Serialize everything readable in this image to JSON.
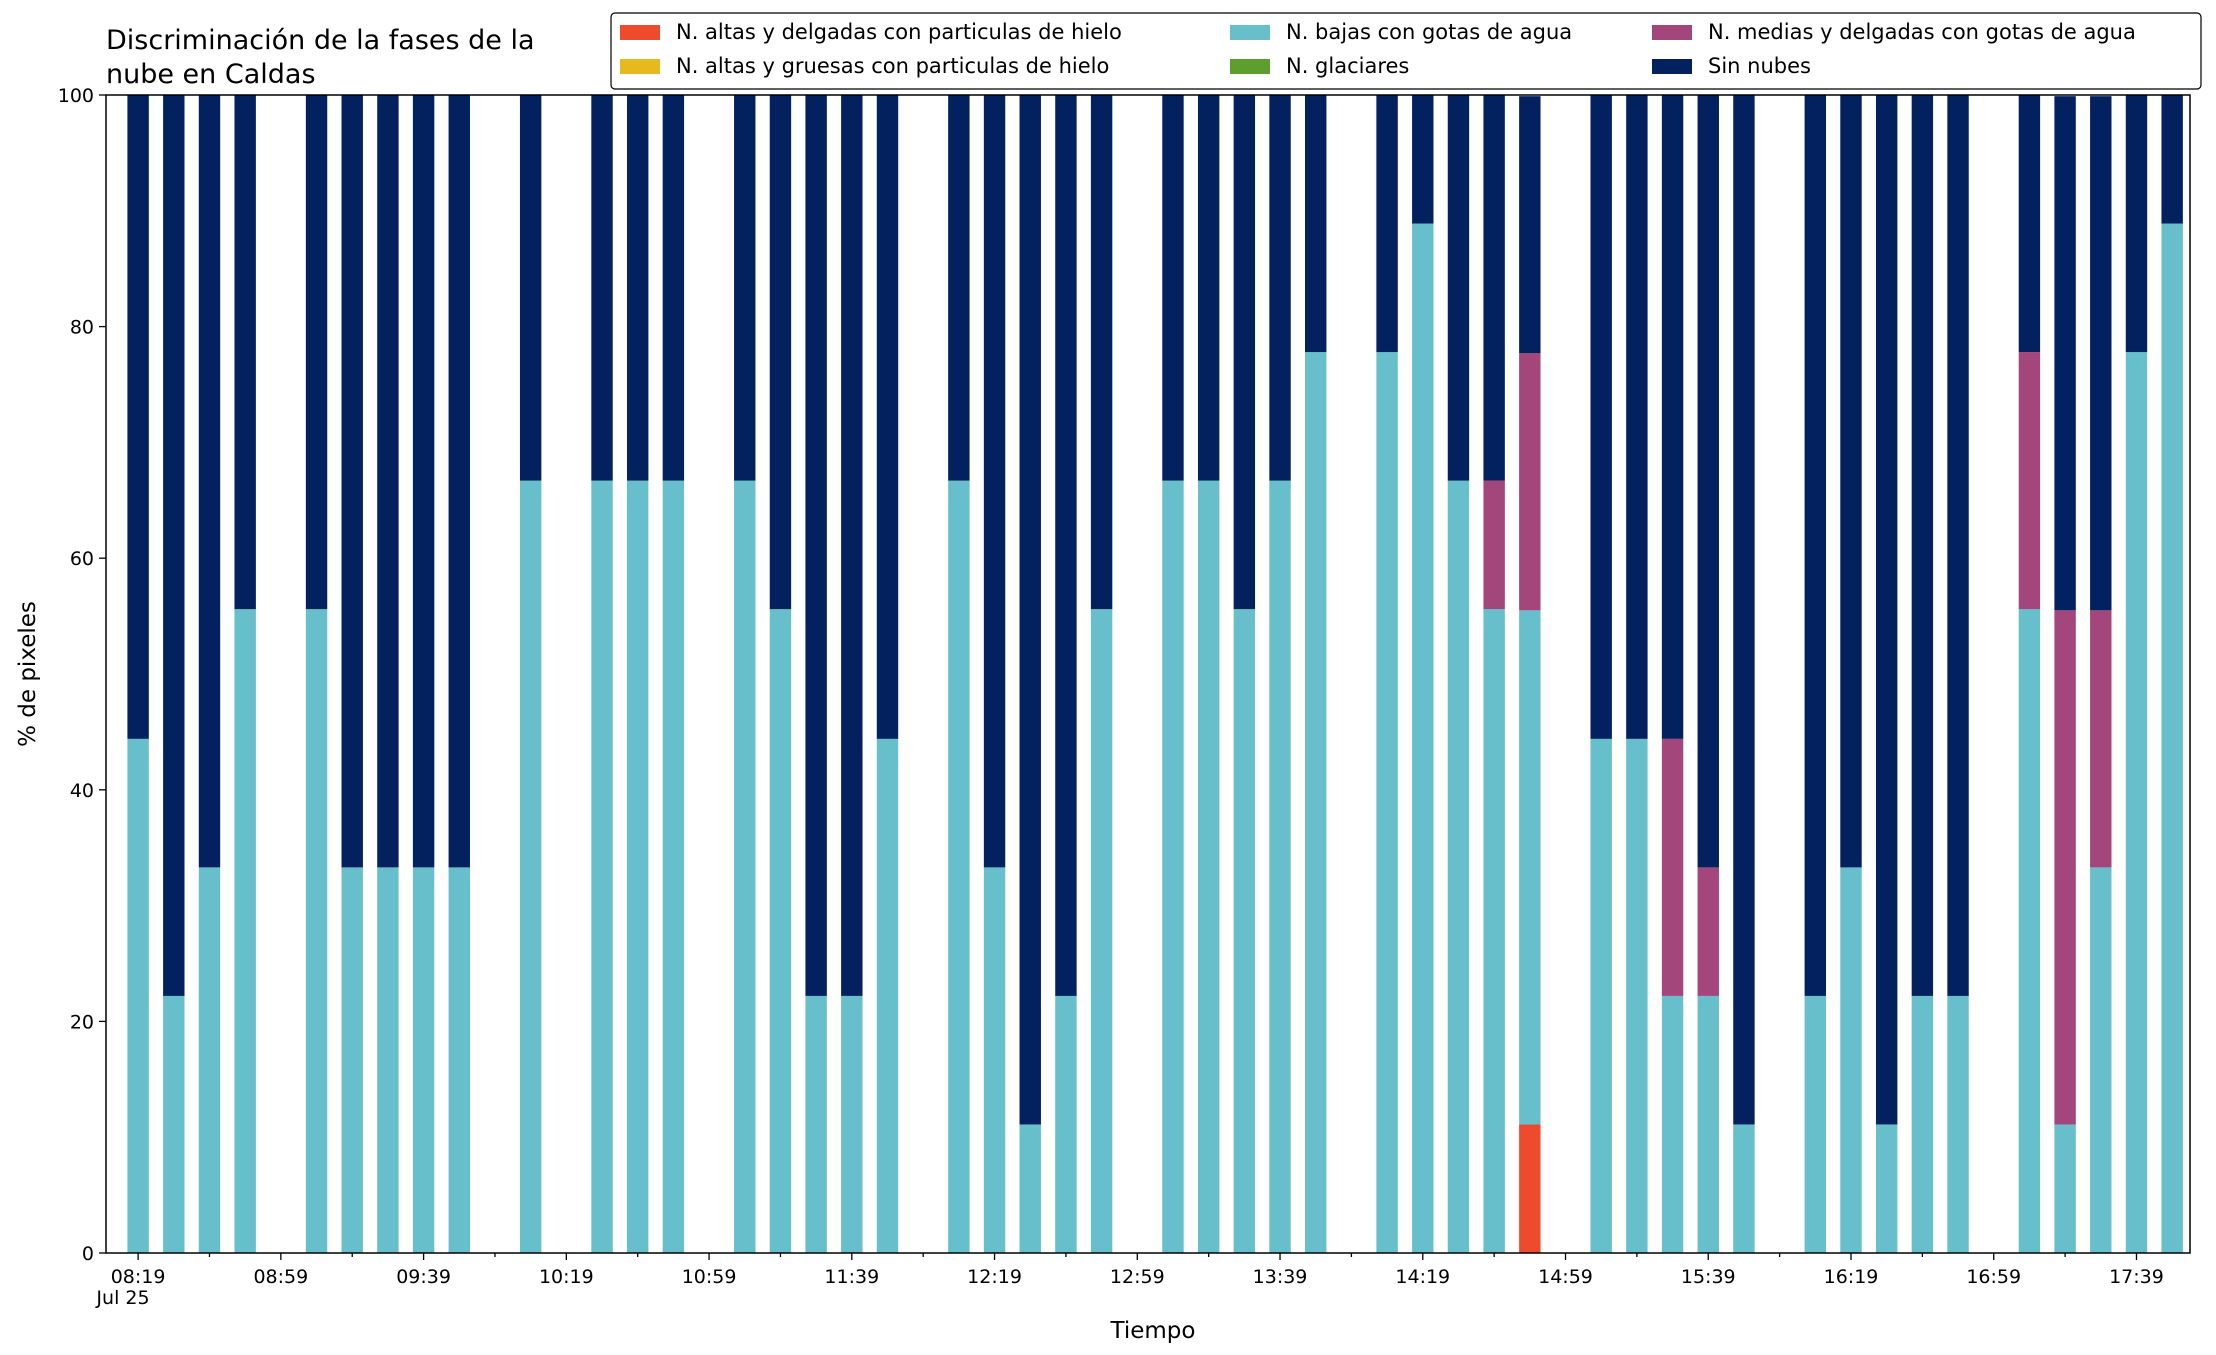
{
  "chart_data": {
    "type": "bar",
    "stacked": true,
    "title": "Discriminación de la fases de la nube en Caldas",
    "title_lines": [
      "Discriminación de la fases de la",
      "nube en Caldas"
    ],
    "xlabel": "Tiempo",
    "ylabel": "% de pixeles",
    "ylim": [
      0,
      100
    ],
    "yticks": [
      0,
      20,
      40,
      60,
      80,
      100
    ],
    "xlim_minutes": [
      -9,
      575
    ],
    "x_tick_labels": [
      "08:19",
      "08:59",
      "09:39",
      "10:19",
      "10:59",
      "11:39",
      "12:19",
      "12:59",
      "13:39",
      "14:19",
      "14:59",
      "15:39",
      "16:19",
      "16:59",
      "17:39"
    ],
    "x_tick_sublabel": "Jul 25",
    "grid": false,
    "legend_position": "top-right",
    "times": [
      "08:19",
      "08:29",
      "08:39",
      "08:49",
      "09:09",
      "09:19",
      "09:29",
      "09:39",
      "09:49",
      "10:09",
      "10:29",
      "10:39",
      "10:49",
      "11:09",
      "11:19",
      "11:29",
      "11:39",
      "11:49",
      "12:09",
      "12:19",
      "12:29",
      "12:39",
      "12:49",
      "13:09",
      "13:19",
      "13:29",
      "13:39",
      "13:49",
      "14:09",
      "14:19",
      "14:29",
      "14:39",
      "14:49",
      "15:09",
      "15:19",
      "15:29",
      "15:39",
      "15:49",
      "16:09",
      "16:19",
      "16:29",
      "16:39",
      "16:49",
      "17:09",
      "17:19",
      "17:29",
      "17:39",
      "17:49"
    ],
    "series": [
      {
        "name": "N. altas y delgadas con particulas de hielo",
        "color": "#ee4a2c",
        "values": [
          0,
          0,
          0,
          0,
          0,
          0,
          0,
          0,
          0,
          0,
          0,
          0,
          0,
          0,
          0,
          0,
          0,
          0,
          0,
          0,
          0,
          0,
          0,
          0,
          0,
          0,
          0,
          0,
          0,
          0,
          0,
          0,
          11.1,
          0,
          0,
          0,
          0,
          0,
          0,
          0,
          0,
          0,
          0,
          0,
          0,
          0,
          0,
          0
        ]
      },
      {
        "name": "N. altas y gruesas con particulas de hielo",
        "color": "#e6b91e",
        "values": [
          0,
          0,
          0,
          0,
          0,
          0,
          0,
          0,
          0,
          0,
          0,
          0,
          0,
          0,
          0,
          0,
          0,
          0,
          0,
          0,
          0,
          0,
          0,
          0,
          0,
          0,
          0,
          0,
          0,
          0,
          0,
          0,
          0,
          0,
          0,
          0,
          0,
          0,
          0,
          0,
          0,
          0,
          0,
          0,
          0,
          0,
          0,
          0
        ]
      },
      {
        "name": "N. bajas con gotas de agua",
        "color": "#66bfca",
        "values": [
          44.4,
          22.2,
          33.3,
          55.6,
          55.6,
          33.3,
          33.3,
          33.3,
          33.3,
          66.7,
          66.7,
          66.7,
          66.7,
          66.7,
          55.6,
          22.2,
          22.2,
          44.4,
          66.7,
          33.3,
          11.1,
          22.2,
          55.6,
          66.7,
          66.7,
          55.6,
          66.7,
          77.8,
          77.8,
          88.9,
          66.7,
          55.6,
          44.4,
          44.4,
          44.4,
          22.2,
          22.2,
          11.1,
          22.2,
          33.3,
          11.1,
          22.2,
          22.2,
          55.6,
          11.1,
          33.3,
          77.8,
          88.9
        ]
      },
      {
        "name": "N. glaciares",
        "color": "#5d9e2e",
        "values": [
          0,
          0,
          0,
          0,
          0,
          0,
          0,
          0,
          0,
          0,
          0,
          0,
          0,
          0,
          0,
          0,
          0,
          0,
          0,
          0,
          0,
          0,
          0,
          0,
          0,
          0,
          0,
          0,
          0,
          0,
          0,
          0,
          0,
          0,
          0,
          0,
          0,
          0,
          0,
          0,
          0,
          0,
          0,
          0,
          0,
          0,
          0,
          0
        ]
      },
      {
        "name": "N. medias y delgadas con gotas de agua",
        "color": "#a3467b",
        "values": [
          0,
          0,
          0,
          0,
          0,
          0,
          0,
          0,
          0,
          0,
          0,
          0,
          0,
          0,
          0,
          0,
          0,
          0,
          0,
          0,
          0,
          0,
          0,
          0,
          0,
          0,
          0,
          0,
          0,
          0,
          0,
          11.1,
          22.2,
          0,
          0,
          22.2,
          11.1,
          0,
          0,
          0,
          0,
          0,
          0,
          22.2,
          44.4,
          22.2,
          0,
          0
        ]
      },
      {
        "name": "Sin nubes",
        "color": "#03205f",
        "values": [
          55.6,
          77.8,
          66.7,
          44.4,
          44.4,
          66.7,
          66.7,
          66.7,
          66.7,
          33.3,
          33.3,
          33.3,
          33.3,
          33.3,
          44.4,
          77.8,
          77.8,
          55.6,
          33.3,
          66.7,
          88.9,
          77.8,
          44.4,
          33.3,
          33.3,
          44.4,
          33.3,
          22.2,
          22.2,
          11.1,
          33.3,
          33.3,
          22.2,
          55.6,
          55.6,
          55.6,
          66.7,
          88.9,
          77.8,
          66.7,
          88.9,
          77.8,
          77.8,
          22.2,
          44.4,
          44.4,
          22.2,
          11.1
        ]
      }
    ]
  }
}
